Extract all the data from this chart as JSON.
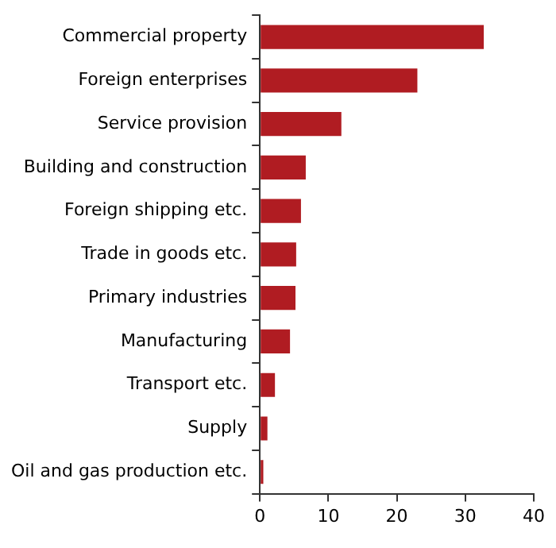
{
  "chart_data": {
    "type": "bar",
    "orientation": "horizontal",
    "categories": [
      "Commercial property",
      "Foreign enterprises",
      "Service provision",
      "Building and construction",
      "Foreign shipping etc.",
      "Trade in goods etc.",
      "Primary industries",
      "Manufacturing",
      "Transport etc.",
      "Supply",
      "Oil and gas production etc."
    ],
    "values": [
      32.7,
      23.0,
      11.9,
      6.7,
      6.0,
      5.3,
      5.2,
      4.4,
      2.2,
      1.1,
      0.5
    ],
    "color": "#b01c22",
    "xlim": [
      0,
      40
    ],
    "xticks": [
      0,
      10,
      20,
      30,
      40
    ],
    "grid": false,
    "legend": false
  }
}
